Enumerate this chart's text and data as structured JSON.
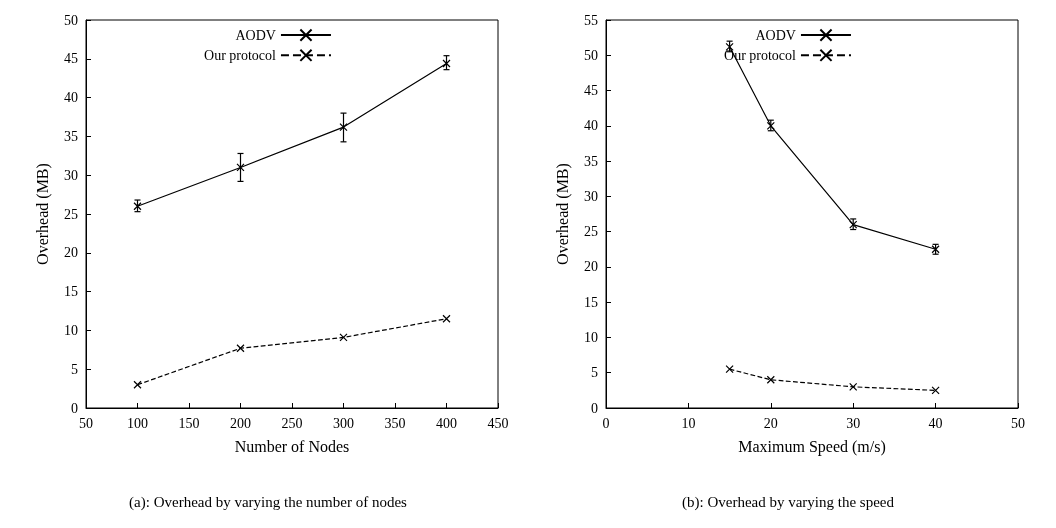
{
  "chart_data": [
    {
      "type": "line",
      "title": "(a): Overhead by varying the number of nodes",
      "xlabel": "Number of Nodes",
      "ylabel": "Overhead (MB)",
      "x": [
        100,
        200,
        300,
        400
      ],
      "xlim": [
        50,
        450
      ],
      "xticks": [
        50,
        100,
        150,
        200,
        250,
        300,
        350,
        400,
        450
      ],
      "ylim": [
        0,
        50
      ],
      "yticks": [
        0,
        5,
        10,
        15,
        20,
        25,
        30,
        35,
        40,
        45,
        50
      ],
      "grid": false,
      "legend": "top",
      "series": [
        {
          "name": "AODV",
          "color": "#000000",
          "marker": "cross",
          "line_style": "solid",
          "values": [
            26,
            31,
            36.2,
            44.4
          ],
          "errors": [
            [
              25.3,
              26.8
            ],
            [
              29.2,
              32.8
            ],
            [
              34.3,
              38
            ],
            [
              43.6,
              45.4
            ]
          ]
        },
        {
          "name": "Our protocol",
          "color": "#000000",
          "marker": "cross",
          "line_style": "dashed",
          "values": [
            3,
            7.7,
            9.1,
            11.5
          ]
        }
      ]
    },
    {
      "type": "line",
      "title": "(b): Overhead by varying the speed",
      "xlabel": "Maximum Speed (m/s)",
      "ylabel": "Overhead (MB)",
      "x": [
        15,
        20,
        30,
        40
      ],
      "xlim": [
        0,
        50
      ],
      "xticks": [
        0,
        10,
        20,
        30,
        40,
        50
      ],
      "ylim": [
        0,
        55
      ],
      "yticks": [
        0,
        5,
        10,
        15,
        20,
        25,
        30,
        35,
        40,
        45,
        50,
        55
      ],
      "grid": false,
      "legend": "top",
      "series": [
        {
          "name": "AODV",
          "color": "#000000",
          "marker": "cross",
          "line_style": "solid",
          "values": [
            51.2,
            40,
            26,
            22.5
          ],
          "errors": [
            [
              50.5,
              52
            ],
            [
              39.3,
              40.8
            ],
            [
              25.3,
              26.8
            ],
            [
              21.8,
              23.2
            ]
          ]
        },
        {
          "name": "Our protocol",
          "color": "#000000",
          "marker": "cross",
          "line_style": "dashed",
          "values": [
            5.5,
            4,
            3,
            2.5
          ]
        }
      ]
    }
  ]
}
